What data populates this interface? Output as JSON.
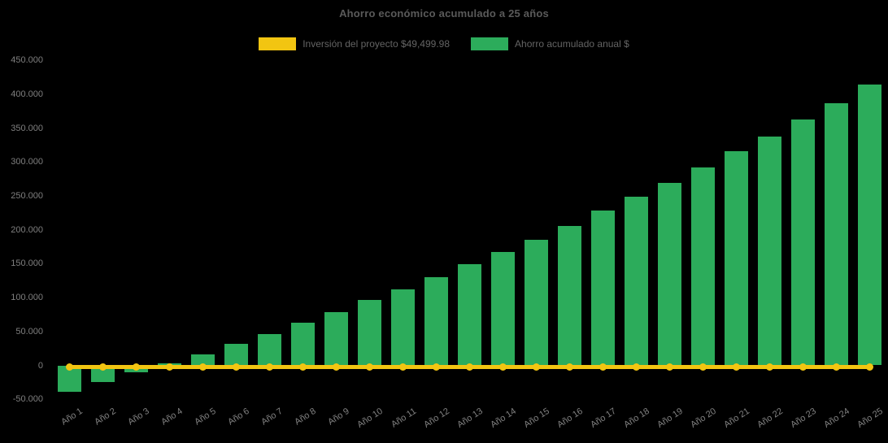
{
  "background": "#000000",
  "text_colors": {
    "title": "#5a5a5a",
    "legend": "#646464",
    "axis": "#7f7f7f"
  },
  "chart_data": {
    "type": "bar",
    "title": "Ahorro económico acumulado a 25 años",
    "categories": [
      "Año 1",
      "Año 2",
      "Año 3",
      "Año 4",
      "Año 5",
      "Año 6",
      "Año 7",
      "Año 8",
      "Año 9",
      "Año 10",
      "Año 11",
      "Año 12",
      "Año 13",
      "Año 14",
      "Año 15",
      "Año 16",
      "Año 17",
      "Año 18",
      "Año 19",
      "Año 20",
      "Año 21",
      "Año 22",
      "Año 23",
      "Año 24",
      "Año 25"
    ],
    "series": [
      {
        "name": "Inversión del proyecto $49,499.98",
        "type": "line",
        "color": "#F2C511",
        "investment_value": 49499.98,
        "plotted_constant_value": 0,
        "markers": "circle"
      },
      {
        "name": "Ahorro acumulado anual $",
        "type": "bar",
        "color": "#2CAC5B",
        "values": [
          -39000,
          -25000,
          -10500,
          3000,
          16500,
          32000,
          46500,
          63500,
          78500,
          96000,
          112000,
          130000,
          149000,
          167000,
          185000,
          206000,
          228000,
          248500,
          269500,
          292500,
          315500,
          338000,
          363000,
          387000,
          414000
        ]
      }
    ],
    "ylim": [
      -50000,
      450000
    ],
    "ytick_step": 50000,
    "ytick_labels": [
      "450.000",
      "400.000",
      "350.000",
      "300.000",
      "250.000",
      "200.000",
      "150.000",
      "100.000",
      "50.000",
      "0",
      "-50.000"
    ],
    "xlabel": "",
    "ylabel": "",
    "grid": false,
    "legend_position": "top"
  }
}
